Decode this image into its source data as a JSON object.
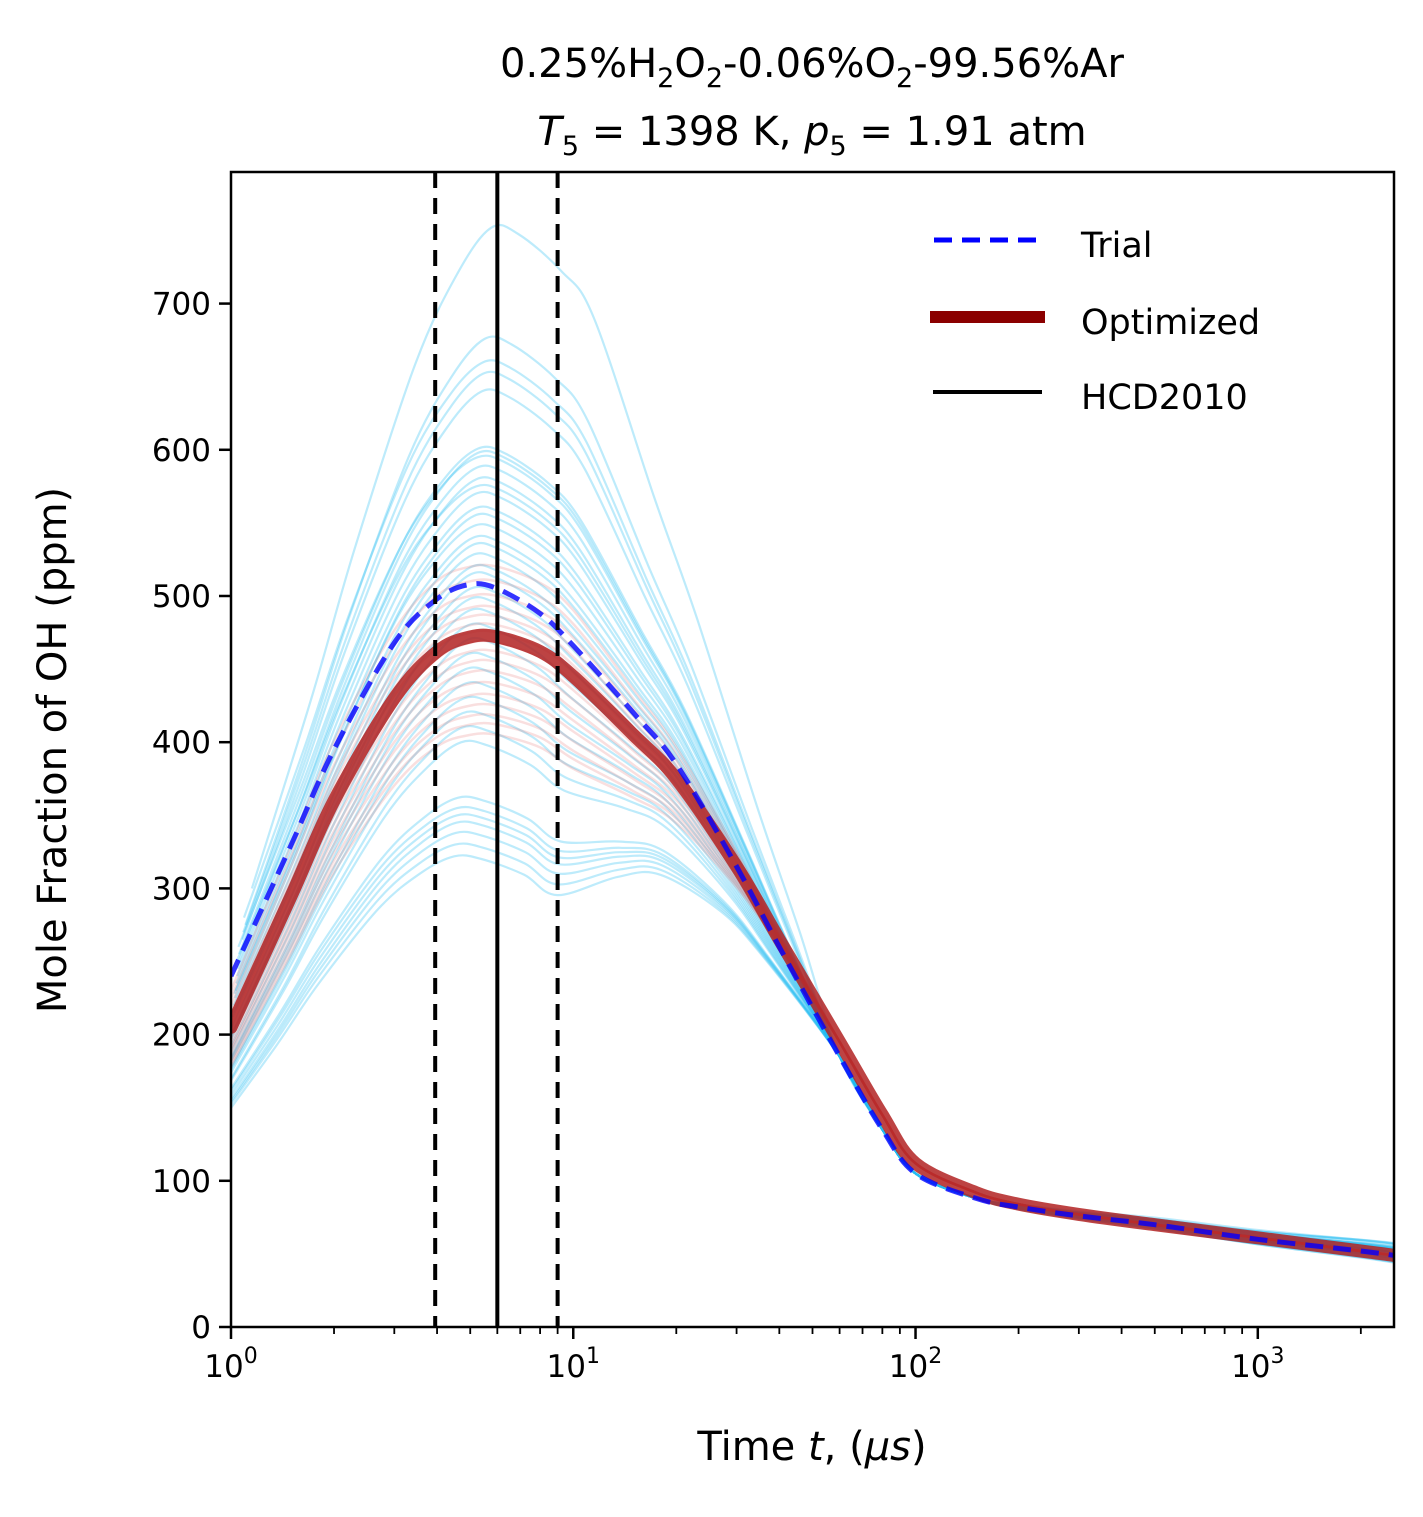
{
  "chart_data": {
    "type": "line",
    "title_line1": {
      "parts": [
        {
          "t": "0.25%H",
          "sub": false
        },
        {
          "t": "2",
          "sub": true
        },
        {
          "t": "O",
          "sub": false
        },
        {
          "t": "2",
          "sub": true
        },
        {
          "t": "-0.06%O",
          "sub": false
        },
        {
          "t": "2",
          "sub": true
        },
        {
          "t": "-99.56%Ar",
          "sub": false
        }
      ],
      "text": "0.25%H2O2-0.06%O2-99.56%Ar"
    },
    "title_line2": {
      "text": "T5 = 1398 K, p5 = 1.91 atm",
      "T_symbol": "T",
      "T_sub": "5",
      "T_value": " = 1398 K, ",
      "p_symbol": "p",
      "p_sub": "5",
      "p_value": " = 1.91 atm"
    },
    "xlabel": {
      "prefix": "Time ",
      "var": "t",
      "mid": ", (",
      "mu": "μ",
      "unit": "s",
      "suffix": ")"
    },
    "ylabel": "Mole Fraction of OH (ppm)",
    "xscale": "log",
    "xlim": [
      1,
      2500
    ],
    "ylim": [
      0,
      790
    ],
    "xticks": [
      {
        "value": 1,
        "base": "10",
        "exp": "0"
      },
      {
        "value": 10,
        "base": "10",
        "exp": "1"
      },
      {
        "value": 100,
        "base": "10",
        "exp": "2"
      },
      {
        "value": 1000,
        "base": "10",
        "exp": "3"
      }
    ],
    "yticks": [
      0,
      100,
      200,
      300,
      400,
      500,
      600,
      700
    ],
    "grid": false,
    "legend": {
      "placement": "top-right",
      "entries": [
        {
          "label": "Trial",
          "color": "#0000ff",
          "style": "dashed"
        },
        {
          "label": "Optimized",
          "color": "#8b0000",
          "style": "solid-thick"
        },
        {
          "label": "HCD2010",
          "color": "#000000",
          "style": "solid"
        }
      ]
    },
    "vertical_lines": [
      {
        "name": "lower-bound",
        "x": 3.95,
        "style": "dashed",
        "color": "#000000"
      },
      {
        "name": "HCD2010",
        "x": 6.0,
        "style": "solid",
        "color": "#000000"
      },
      {
        "name": "upper-bound",
        "x": 9.0,
        "style": "dashed",
        "color": "#000000"
      }
    ],
    "series": [
      {
        "name": "Trial",
        "color": "#0000ff",
        "style": "dashed",
        "x": [
          1,
          1.5,
          2,
          3,
          4,
          5,
          6,
          8,
          10,
          15,
          20,
          30,
          40,
          60,
          80,
          100,
          150,
          200,
          300,
          500,
          1000,
          2000,
          2500
        ],
        "y": [
          240,
          330,
          395,
          468,
          498,
          508,
          505,
          488,
          466,
          420,
          385,
          315,
          260,
          185,
          135,
          105,
          88,
          82,
          76,
          70,
          60,
          52,
          49
        ]
      },
      {
        "name": "Optimized",
        "color": "#8b0000",
        "style": "solid-thick",
        "x": [
          1,
          1.5,
          2,
          3,
          4,
          5,
          6,
          8,
          10,
          15,
          20,
          30,
          40,
          60,
          80,
          100,
          150,
          200,
          300,
          500,
          1000,
          2000,
          2500
        ],
        "y": [
          205,
          295,
          360,
          430,
          462,
          472,
          472,
          462,
          445,
          405,
          375,
          315,
          265,
          195,
          145,
          112,
          92,
          84,
          77,
          70,
          61,
          52,
          49
        ]
      }
    ],
    "ensemble_blue": {
      "color": "#26bdf2",
      "description": "sampled trial models (light blue)",
      "peaks": [
        752,
        676,
        660,
        652,
        640,
        601,
        598,
        595,
        588,
        580,
        575,
        570,
        560,
        555,
        548,
        540,
        535,
        528,
        520,
        515,
        505,
        498,
        490,
        480,
        470,
        460,
        450,
        440,
        430,
        420,
        410,
        400,
        362,
        355,
        350,
        345,
        338,
        330,
        322
      ],
      "starts": [
        300,
        275,
        280,
        270,
        265,
        255,
        250,
        260,
        245,
        240,
        250,
        235,
        230,
        225,
        228,
        220,
        215,
        212,
        205,
        200,
        198,
        195,
        190,
        185,
        180,
        178,
        175,
        170,
        168,
        165,
        160,
        158,
        150,
        148,
        145,
        142,
        140,
        138,
        135
      ],
      "tails": [
        52,
        58,
        55,
        50,
        56,
        54,
        52,
        57,
        53,
        50,
        55,
        54,
        51,
        56,
        53,
        52,
        48,
        55,
        50,
        53,
        47,
        52,
        49,
        54,
        46,
        50,
        48,
        53,
        45,
        51,
        47,
        49,
        44,
        48,
        46,
        50,
        45,
        47,
        44
      ]
    },
    "ensemble_red": {
      "color": "#e06060",
      "description": "sampled optimized models (light red)",
      "peaks": [
        520,
        510,
        500,
        492,
        486,
        480,
        475,
        468,
        462,
        455,
        448,
        440,
        432,
        425,
        418,
        412,
        405
      ],
      "starts": [
        230,
        225,
        220,
        215,
        212,
        208,
        205,
        200,
        198,
        195,
        192,
        190,
        188,
        185,
        182,
        180,
        178
      ],
      "tails": [
        50,
        49,
        48,
        50,
        49,
        48,
        50,
        49,
        48,
        50,
        49,
        48,
        50,
        49,
        48,
        50,
        49
      ]
    }
  }
}
